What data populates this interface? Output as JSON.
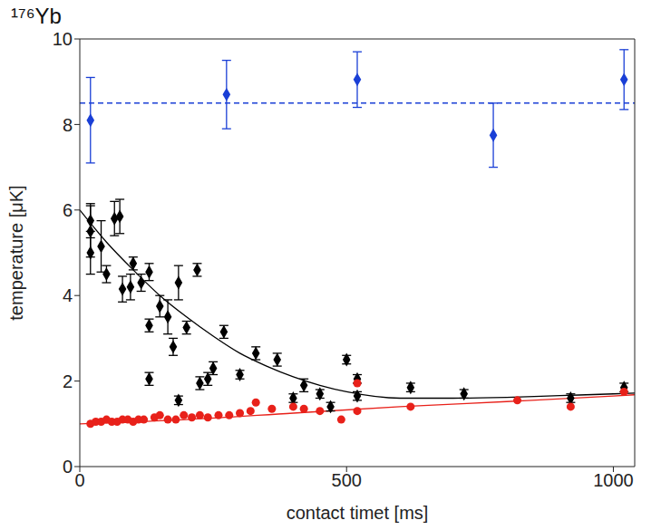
{
  "chart_data": {
    "type": "scatter",
    "title": "¹⁷⁶Yb",
    "x_label": "contact timet [ms]",
    "y_label": "temperature [μK]",
    "xlim": [
      0,
      1040
    ],
    "xticks": [
      0,
      500,
      1000
    ],
    "ylim": [
      0,
      10
    ],
    "yticks": [
      0,
      2,
      4,
      6,
      8,
      10
    ],
    "reference_line": {
      "value": 8.5,
      "color": "#1a3fd6",
      "line_style": "dashed"
    },
    "series": [
      {
        "type": "line",
        "color": "#000000",
        "line_style": "solid",
        "x": [
          0,
          50,
          100,
          150,
          200,
          250,
          300,
          350,
          400,
          450,
          500,
          600,
          700,
          800,
          900,
          1000,
          1040
        ],
        "values": [
          6.0,
          5.25,
          4.6,
          4.0,
          3.5,
          3.05,
          2.65,
          2.35,
          2.1,
          1.9,
          1.75,
          1.6,
          1.6,
          1.62,
          1.66,
          1.7,
          1.72
        ]
      },
      {
        "type": "line",
        "color": "#e8211a",
        "line_style": "solid",
        "x": [
          0,
          200,
          400,
          600,
          800,
          1000,
          1040
        ],
        "values": [
          1.0,
          1.1,
          1.25,
          1.4,
          1.52,
          1.65,
          1.68
        ]
      },
      {
        "type": "scatter",
        "color": "#1a3fd6",
        "marker": "diamond",
        "x": [
          20,
          275,
          520,
          775,
          1020
        ],
        "values": [
          8.1,
          8.7,
          9.05,
          7.75,
          9.05
        ],
        "errors": [
          1.0,
          0.8,
          0.65,
          0.75,
          0.7
        ]
      },
      {
        "type": "scatter",
        "color": "#000000",
        "marker": "diamond",
        "x": [
          20,
          20,
          20,
          40,
          50,
          65,
          75,
          80,
          95,
          100,
          115,
          130,
          130,
          130,
          150,
          165,
          175,
          185,
          185,
          200,
          220,
          225,
          240,
          250,
          270,
          300,
          330,
          370,
          400,
          420,
          450,
          470,
          500,
          520,
          520,
          620,
          720,
          920,
          1020
        ],
        "values": [
          5.75,
          5.5,
          5.0,
          5.15,
          4.5,
          5.8,
          5.85,
          4.15,
          4.2,
          4.75,
          4.3,
          4.55,
          3.3,
          2.05,
          3.75,
          3.5,
          2.8,
          4.3,
          1.55,
          3.25,
          4.6,
          1.95,
          2.05,
          2.3,
          3.15,
          2.15,
          2.65,
          2.5,
          1.6,
          1.9,
          1.7,
          1.4,
          2.5,
          2.05,
          1.65,
          1.85,
          1.7,
          1.6,
          1.85
        ],
        "errors": [
          0.4,
          0.6,
          0.5,
          0.6,
          0.2,
          0.4,
          0.4,
          0.3,
          0.3,
          0.15,
          0.2,
          0.2,
          0.15,
          0.15,
          0.25,
          0.4,
          0.2,
          0.4,
          0.1,
          0.15,
          0.15,
          0.15,
          0.15,
          0.15,
          0.15,
          0.1,
          0.15,
          0.15,
          0.1,
          0.15,
          0.1,
          0.1,
          0.1,
          0.1,
          0.1,
          0.1,
          0.1,
          0.1,
          0.1
        ]
      },
      {
        "type": "scatter",
        "color": "#e8211a",
        "marker": "circle",
        "x": [
          20,
          30,
          40,
          50,
          60,
          70,
          80,
          90,
          100,
          110,
          120,
          140,
          150,
          165,
          180,
          195,
          210,
          225,
          240,
          260,
          280,
          300,
          320,
          330,
          360,
          400,
          420,
          450,
          490,
          520,
          520,
          620,
          820,
          920,
          1020
        ],
        "values": [
          1.0,
          1.05,
          1.05,
          1.1,
          1.05,
          1.05,
          1.1,
          1.1,
          1.05,
          1.1,
          1.1,
          1.15,
          1.2,
          1.1,
          1.1,
          1.2,
          1.15,
          1.2,
          1.15,
          1.2,
          1.2,
          1.25,
          1.3,
          1.5,
          1.35,
          1.4,
          1.35,
          1.3,
          1.1,
          1.3,
          1.95,
          1.4,
          1.55,
          1.4,
          1.75
        ]
      }
    ]
  }
}
